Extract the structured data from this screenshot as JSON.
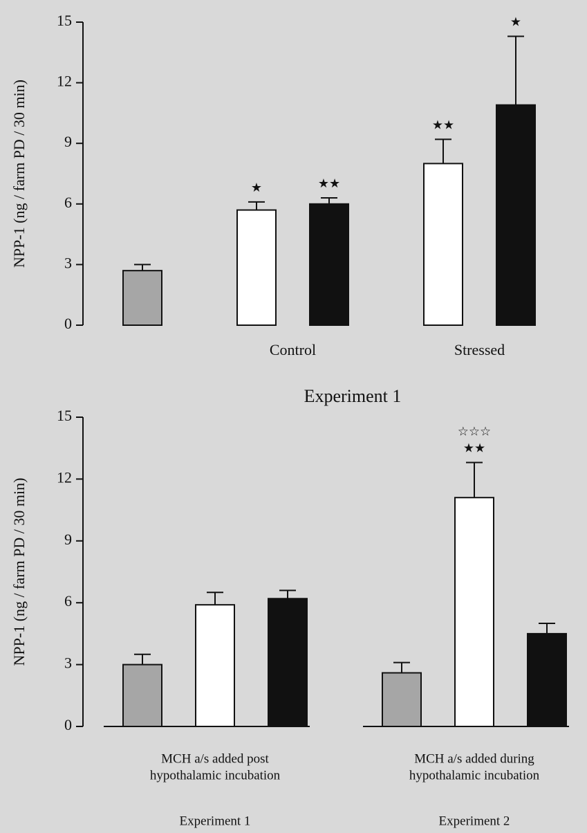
{
  "chart_data": [
    {
      "type": "bar",
      "ylabel": "NPP-1 (ng / farm PD / 30 min)",
      "xlabel": "Experiment 1",
      "categories": [
        null,
        "Control",
        "Stressed"
      ],
      "ylim": [
        0,
        15
      ],
      "yticks": [
        0,
        3,
        6,
        9,
        12,
        15
      ],
      "baseline": false,
      "series": [
        {
          "color": "#a6a6a6",
          "values": [
            2.7,
            null,
            null
          ],
          "errors": [
            0.3,
            null,
            null
          ]
        },
        {
          "color": "#ffffff",
          "values": [
            null,
            5.7,
            8.0
          ],
          "errors": [
            null,
            0.4,
            1.2
          ],
          "annotations": [
            null,
            [
              "★"
            ],
            [
              "★★"
            ]
          ]
        },
        {
          "color": "#111111",
          "values": [
            null,
            6.0,
            10.9
          ],
          "errors": [
            null,
            0.3,
            3.4
          ],
          "annotations": [
            null,
            [
              "★★"
            ],
            [
              "★"
            ]
          ]
        }
      ]
    },
    {
      "type": "bar",
      "ylabel": "NPP-1 (ng / farm PD / 30 min)",
      "categories": [
        [
          "MCH a/s added post",
          "hypothalamic incubation"
        ],
        [
          "MCH a/s added during",
          "hypothalamic incubation"
        ]
      ],
      "sublabels": [
        "Experiment 1",
        "Experiment 2"
      ],
      "ylim": [
        0,
        15
      ],
      "yticks": [
        0,
        3,
        6,
        9,
        12,
        15
      ],
      "baseline": true,
      "series": [
        {
          "color": "#a6a6a6",
          "values": [
            3.0,
            2.6
          ],
          "errors": [
            0.5,
            0.5
          ]
        },
        {
          "color": "#ffffff",
          "values": [
            5.9,
            11.1
          ],
          "errors": [
            0.6,
            1.7
          ],
          "annotations": [
            null,
            [
              "☆☆☆",
              "★★"
            ]
          ]
        },
        {
          "color": "#111111",
          "values": [
            6.2,
            4.5
          ],
          "errors": [
            0.4,
            0.5
          ]
        }
      ]
    }
  ]
}
